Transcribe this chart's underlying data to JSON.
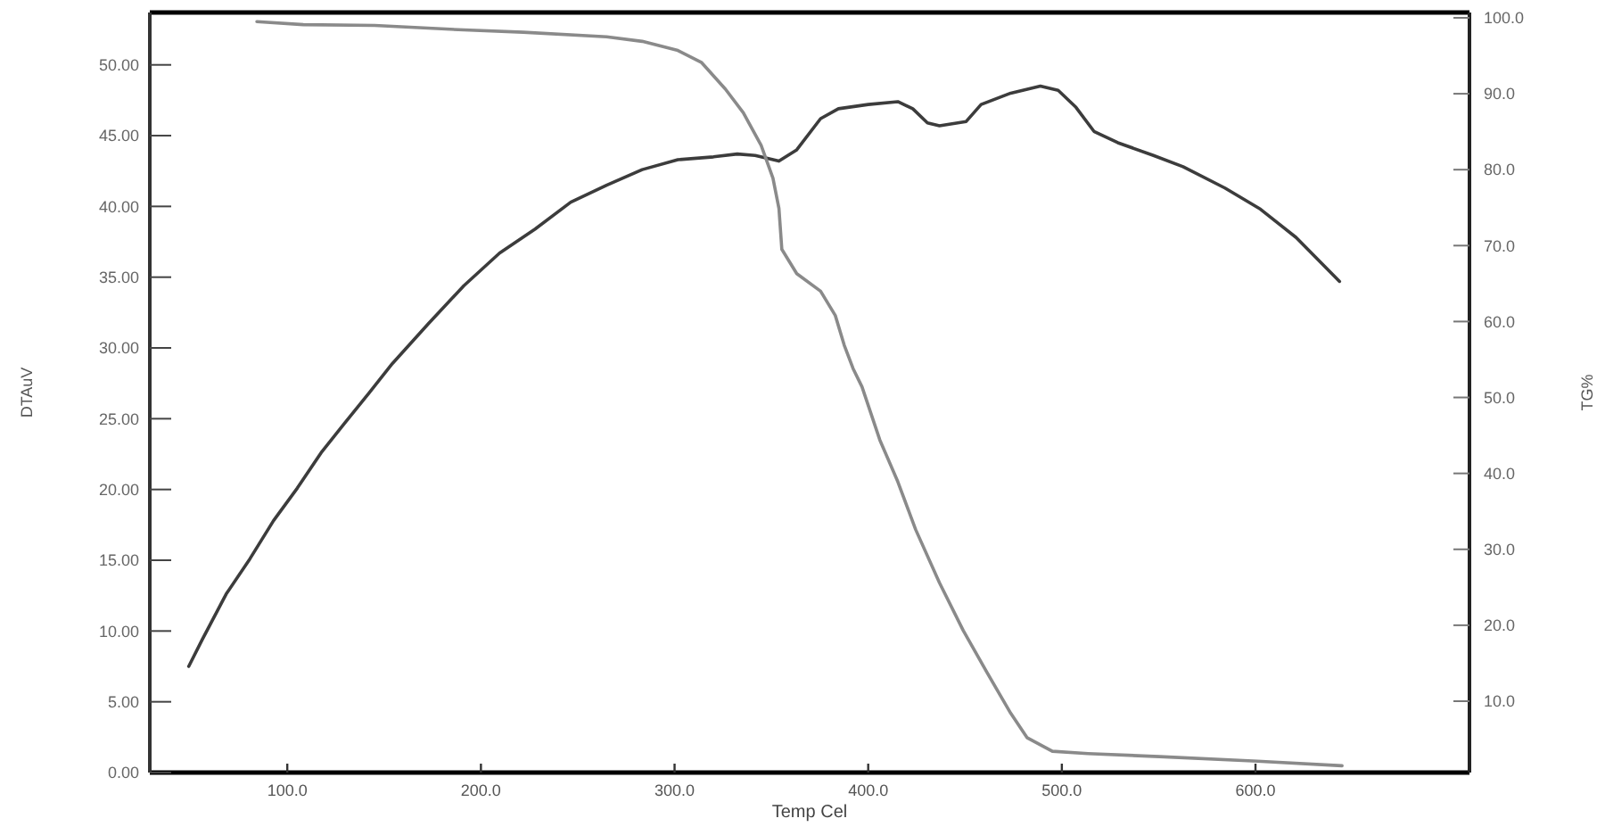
{
  "chart_data": {
    "type": "line",
    "xlabel": "Temp Cel",
    "ylabel": "DTAuV",
    "y2label": "TG%",
    "xlim": [
      29,
      710.5
    ],
    "ylim": [
      0,
      53.7
    ],
    "y2lim": [
      0.6,
      100.7
    ],
    "xticks": [
      {
        "value": 100,
        "label": "100.0"
      },
      {
        "value": 200,
        "label": "200.0"
      },
      {
        "value": 300,
        "label": "300.0"
      },
      {
        "value": 400,
        "label": "400.0"
      },
      {
        "value": 500,
        "label": "500.0"
      },
      {
        "value": 600,
        "label": "600.0"
      }
    ],
    "yticks": [
      {
        "value": 0,
        "label": "0.00"
      },
      {
        "value": 5,
        "label": "5.00"
      },
      {
        "value": 10,
        "label": "10.00"
      },
      {
        "value": 15,
        "label": "15.00"
      },
      {
        "value": 20,
        "label": "20.00"
      },
      {
        "value": 25,
        "label": "25.00"
      },
      {
        "value": 30,
        "label": "30.00"
      },
      {
        "value": 35,
        "label": "35.00"
      },
      {
        "value": 40,
        "label": "40.00"
      },
      {
        "value": 45,
        "label": "45.00"
      },
      {
        "value": 50,
        "label": "50.00"
      }
    ],
    "y2ticks": [
      {
        "value": 10,
        "label": "10.0"
      },
      {
        "value": 20,
        "label": "20.0"
      },
      {
        "value": 30,
        "label": "30.0"
      },
      {
        "value": 40,
        "label": "40.0"
      },
      {
        "value": 50,
        "label": "50.0"
      },
      {
        "value": 60,
        "label": "60.0"
      },
      {
        "value": 70,
        "label": "70.0"
      },
      {
        "value": 80,
        "label": "80.0"
      },
      {
        "value": 90,
        "label": "90.0"
      },
      {
        "value": 100,
        "label": "100.0"
      }
    ],
    "line_style": "solid",
    "series": [
      {
        "color": "#3c3c3c",
        "axis": "y",
        "x": [
          49.1,
          56.1,
          68.4,
          80.7,
          92.9,
          105.2,
          117.5,
          129.7,
          142.1,
          154.3,
          172.8,
          191.2,
          209.6,
          228.0,
          246.4,
          264.9,
          283.3,
          301.7,
          320.1,
          332.4,
          341.6,
          353.9,
          363.1,
          375.4,
          384.6,
          400.0,
          415.3,
          423.0,
          430.6,
          436.8,
          450.6,
          458.3,
          473.6,
          488.9,
          498.1,
          507.3,
          516.6,
          528.9,
          547.3,
          562.6,
          584.2,
          602.6,
          621.0,
          643.4
        ],
        "values": [
          7.5,
          9.4,
          12.6,
          15.1,
          17.8,
          20.1,
          22.6,
          24.7,
          26.8,
          28.9,
          31.7,
          34.4,
          36.7,
          38.4,
          40.3,
          41.5,
          42.6,
          43.3,
          43.5,
          43.7,
          43.6,
          43.2,
          44.0,
          46.2,
          46.9,
          47.2,
          47.4,
          46.9,
          45.9,
          45.7,
          46.0,
          47.2,
          48.0,
          48.5,
          48.2,
          47.0,
          45.3,
          44.5,
          43.6,
          42.8,
          41.3,
          39.8,
          37.8,
          34.7
        ]
      },
      {
        "color": "#8a8a8a",
        "axis": "y2",
        "x": [
          84.3,
          108.3,
          145.1,
          191.2,
          221.8,
          264.9,
          283.3,
          301.7,
          314.0,
          326.3,
          335.5,
          344.7,
          350.8,
          353.9,
          355.4,
          363.1,
          375.4,
          383.0,
          387.6,
          392.2,
          396.8,
          406.0,
          415.3,
          424.5,
          436.8,
          449.1,
          461.3,
          473.6,
          482.0,
          495.1,
          513.5,
          550.4,
          601.0,
          644.7
        ],
        "values": [
          99.5,
          99.1,
          99.0,
          98.4,
          98.1,
          97.5,
          96.9,
          95.7,
          94.1,
          90.6,
          87.5,
          83.2,
          78.9,
          74.9,
          69.5,
          66.3,
          64.0,
          60.8,
          56.9,
          53.8,
          51.4,
          44.4,
          38.9,
          32.6,
          25.6,
          19.3,
          13.8,
          8.4,
          5.2,
          3.4,
          3.1,
          2.7,
          2.1,
          1.5
        ]
      }
    ]
  }
}
